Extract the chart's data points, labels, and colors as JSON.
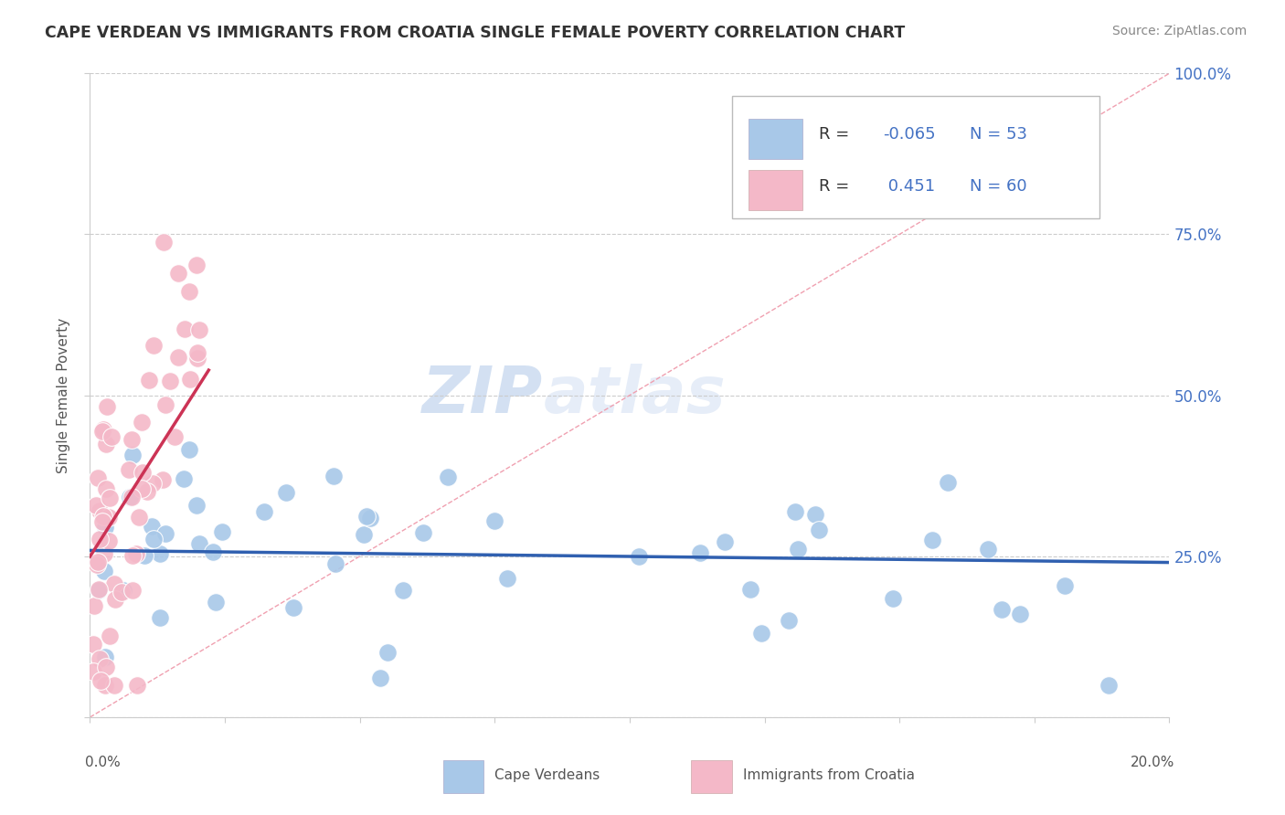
{
  "title": "CAPE VERDEAN VS IMMIGRANTS FROM CROATIA SINGLE FEMALE POVERTY CORRELATION CHART",
  "source": "Source: ZipAtlas.com",
  "ylabel": "Single Female Poverty",
  "legend_blue_label": "Cape Verdeans",
  "legend_pink_label": "Immigrants from Croatia",
  "blue_color": "#a8c8e8",
  "pink_color": "#f4b8c8",
  "blue_line_color": "#3060b0",
  "pink_line_color": "#cc3355",
  "diag_color": "#f0a0b0",
  "grid_color": "#cccccc",
  "R_blue": -0.065,
  "N_blue": 53,
  "R_pink": 0.451,
  "N_pink": 60,
  "text_blue": "#4472c4",
  "text_dark": "#333333",
  "xlim": [
    0.0,
    0.2
  ],
  "ylim": [
    0.0,
    1.0
  ],
  "yticks": [
    0.0,
    0.25,
    0.5,
    0.75,
    1.0
  ],
  "ytick_labels_right": [
    "",
    "25.0%",
    "50.0%",
    "75.0%",
    "100.0%"
  ]
}
